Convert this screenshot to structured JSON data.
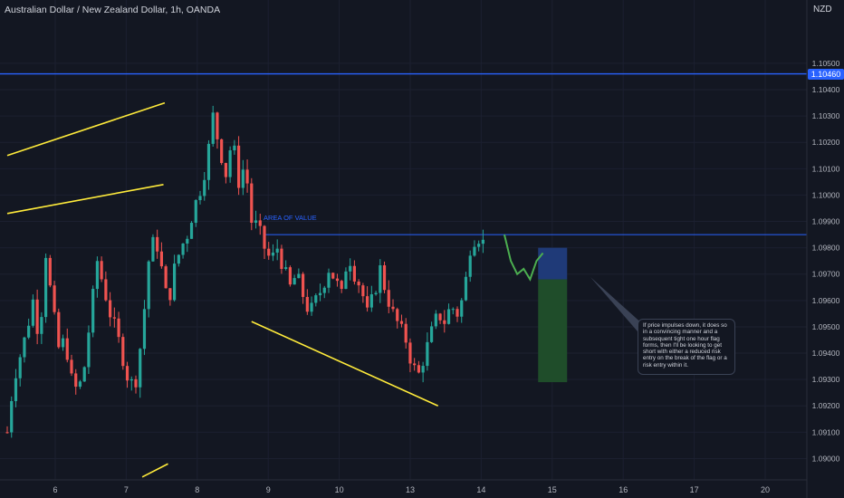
{
  "header": {
    "title": "Australian Dollar / New Zealand Dollar, 1h, OANDA",
    "currency": "NZD"
  },
  "price_badge": "1.10460",
  "annotations": {
    "zone_label": "AREA OF VALUE",
    "note_text": "If price impulses down, it does so in a convincing manner and a subsequent tight one hour flag forms, then I'll be looking to get short with either a reduced risk entry on the break of the flag or a risk entry within it."
  },
  "colors": {
    "background": "#131722",
    "up": "#26a69a",
    "down": "#ef5350",
    "trendline": "#ffeb3b",
    "level": "#2962ff",
    "projection": "#4caf50",
    "target_zone": "#1f4d2a",
    "stop_zone": "#1f3a78"
  },
  "chart_data": {
    "type": "candlestick",
    "symbol": "AUDNZD",
    "timeframe": "1h",
    "x_ticks": [
      "6",
      "7",
      "8",
      "9",
      "10",
      "13",
      "14",
      "15",
      "16",
      "17",
      "20"
    ],
    "y_ticks": [
      "1.10500",
      "1.10400",
      "1.10300",
      "1.10200",
      "1.10100",
      "1.10000",
      "1.09900",
      "1.09800",
      "1.09700",
      "1.09600",
      "1.09500",
      "1.09400",
      "1.09300",
      "1.09200",
      "1.09100",
      "1.09000"
    ],
    "ylim": [
      1.0895,
      1.1062
    ],
    "levels": [
      {
        "name": "current price line",
        "price": 1.1046
      },
      {
        "name": "area of value",
        "price": 1.0985
      }
    ],
    "price_path": [
      [
        0,
        1.091
      ],
      [
        1,
        1.093
      ],
      [
        3,
        1.0948
      ],
      [
        4,
        1.096
      ],
      [
        5,
        1.0945
      ],
      [
        6,
        1.0978
      ],
      [
        7,
        1.0958
      ],
      [
        8,
        1.0942
      ],
      [
        9,
        1.0945
      ],
      [
        10,
        1.093
      ],
      [
        11,
        1.0925
      ],
      [
        12,
        1.0935
      ],
      [
        13,
        1.0955
      ],
      [
        14,
        1.0975
      ],
      [
        15,
        1.0965
      ],
      [
        16,
        1.0955
      ],
      [
        17,
        1.0948
      ],
      [
        18,
        1.0938
      ],
      [
        19,
        1.0928
      ],
      [
        20,
        1.093
      ],
      [
        21,
        1.0948
      ],
      [
        22,
        1.0975
      ],
      [
        23,
        1.0985
      ],
      [
        24,
        1.0972
      ],
      [
        25,
        1.0958
      ],
      [
        26,
        1.0972
      ],
      [
        27,
        1.098
      ],
      [
        28,
        1.0985
      ],
      [
        29,
        1.0995
      ],
      [
        30,
        1.1002
      ],
      [
        31,
        1.1012
      ],
      [
        32,
        1.103
      ],
      [
        33,
        1.1018
      ],
      [
        34,
        1.1008
      ],
      [
        35,
        1.1022
      ],
      [
        36,
        1.1005
      ],
      [
        37,
        1.1012
      ],
      [
        38,
        1.099
      ],
      [
        39,
        1.0988
      ],
      [
        40,
        1.098
      ],
      [
        41,
        1.0975
      ],
      [
        42,
        1.098
      ],
      [
        43,
        1.0972
      ],
      [
        44,
        1.0965
      ],
      [
        45,
        1.097
      ],
      [
        46,
        1.0962
      ],
      [
        47,
        1.0955
      ],
      [
        48,
        1.096
      ],
      [
        49,
        1.0965
      ],
      [
        50,
        1.0972
      ],
      [
        51,
        1.0968
      ],
      [
        52,
        1.0962
      ],
      [
        53,
        1.0978
      ],
      [
        54,
        1.097
      ],
      [
        55,
        1.0965
      ],
      [
        56,
        1.0955
      ],
      [
        57,
        1.0962
      ],
      [
        58,
        1.0972
      ],
      [
        59,
        1.0962
      ],
      [
        60,
        1.0955
      ],
      [
        61,
        1.095
      ],
      [
        62,
        1.0945
      ],
      [
        63,
        1.0935
      ],
      [
        64,
        1.0932
      ],
      [
        65,
        1.094
      ],
      [
        66,
        1.0948
      ],
      [
        67,
        1.0955
      ],
      [
        68,
        1.0952
      ],
      [
        69,
        1.0958
      ],
      [
        70,
        1.0955
      ],
      [
        71,
        1.0962
      ],
      [
        72,
        1.098
      ],
      [
        73,
        1.0985
      ],
      [
        74,
        1.0982
      ]
    ],
    "projection_path": [
      [
        74.5,
        1.0985
      ],
      [
        75.5,
        1.0975
      ],
      [
        76.5,
        1.097
      ],
      [
        77.5,
        1.0972
      ],
      [
        78.5,
        1.0968
      ],
      [
        79.5,
        1.0975
      ],
      [
        80.5,
        1.0978
      ]
    ],
    "trendlines": [
      {
        "from": [
          0,
          1.1015
        ],
        "to": [
          24.5,
          1.1035
        ]
      },
      {
        "from": [
          0,
          1.0993
        ],
        "to": [
          24.3,
          1.1004
        ]
      },
      {
        "from": [
          38,
          1.0952
        ],
        "to": [
          67,
          1.092
        ]
      },
      {
        "from": [
          21,
          1.0893
        ],
        "to": [
          25,
          1.0898
        ]
      }
    ],
    "risk_reward": {
      "stop_price": 1.098,
      "entry_price": 1.0968,
      "target_price": 1.0929,
      "x_range": [
        77.5,
        81
      ]
    }
  }
}
